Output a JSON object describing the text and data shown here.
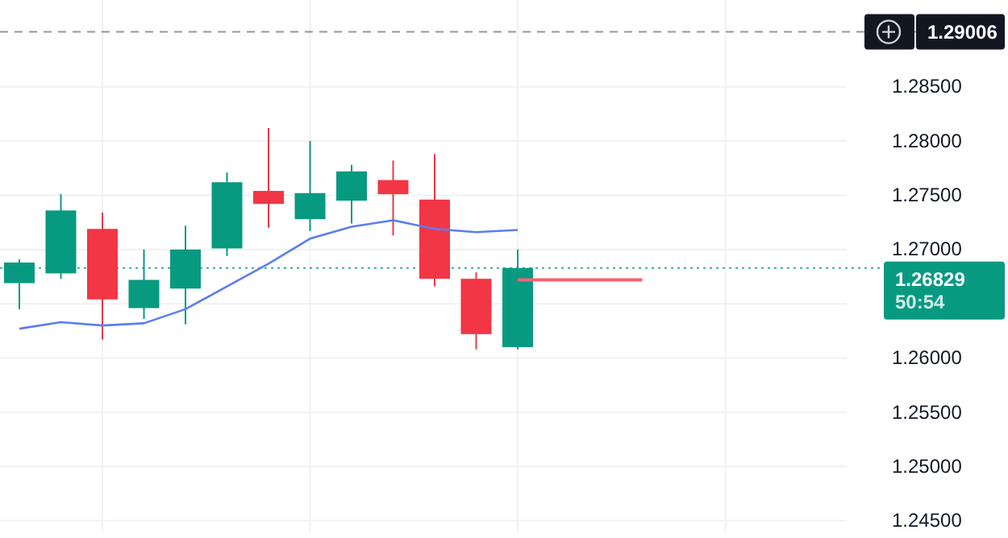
{
  "chart_data": {
    "type": "candlestick",
    "categories": [
      null,
      null,
      null,
      null,
      null,
      null,
      null,
      null,
      null,
      null,
      null,
      null,
      null,
      null,
      null,
      null,
      null,
      null,
      null,
      null
    ],
    "ohlc": [
      [
        1.2669,
        1.2691,
        1.2645,
        1.2688
      ],
      [
        1.2678,
        1.2751,
        1.2673,
        1.2736
      ],
      [
        1.2719,
        1.2734,
        1.2617,
        1.2654
      ],
      [
        1.2646,
        1.27,
        1.2636,
        1.2672
      ],
      [
        1.2664,
        1.2722,
        1.2631,
        1.27
      ],
      [
        1.2701,
        1.2771,
        1.2694,
        1.2762
      ],
      [
        1.2754,
        1.2812,
        1.272,
        1.2742
      ],
      [
        1.2728,
        1.28,
        1.2717,
        1.2752
      ],
      [
        1.2745,
        1.2778,
        1.2724,
        1.2772
      ],
      [
        1.2764,
        1.2782,
        1.2713,
        1.2751
      ],
      [
        1.2746,
        1.2788,
        1.2666,
        1.2673
      ],
      [
        1.2673,
        1.2679,
        1.2608,
        1.2622
      ],
      [
        1.261,
        1.27,
        1.2608,
        1.2683
      ],
      null,
      null,
      null,
      null,
      null,
      null,
      null
    ],
    "colors": [
      "#089981",
      "#089981",
      "#f23645",
      "#089981",
      "#089981",
      "#089981",
      "#f23645",
      "#089981",
      "#089981",
      "#f23645",
      "#f23645",
      "#f23645",
      "#089981",
      null,
      null,
      null,
      null,
      null,
      null,
      null
    ],
    "series": [
      {
        "type": "line",
        "color": "#5b7cf5",
        "values": [
          1.2627,
          1.2633,
          1.263,
          1.2632,
          1.2645,
          1.2666,
          1.2687,
          1.271,
          1.2721,
          1.2727,
          1.2719,
          1.2716,
          1.2718,
          null,
          null,
          null,
          null,
          null,
          null,
          null
        ]
      },
      {
        "type": "line",
        "color": "#f7636f",
        "values": [
          null,
          null,
          null,
          null,
          null,
          null,
          null,
          null,
          null,
          null,
          null,
          null,
          1.2672,
          1.2672,
          1.2672,
          1.2672,
          null,
          null,
          null,
          null
        ]
      }
    ],
    "ylim": [
      1.244,
      1.293
    ],
    "yticks": [
      {
        "value": 1.245,
        "label": "1.24500"
      },
      {
        "value": 1.25,
        "label": "1.25000"
      },
      {
        "value": 1.255,
        "label": "1.25500"
      },
      {
        "value": 1.26,
        "label": "1.26000"
      },
      {
        "value": 1.265,
        "label": null
      },
      {
        "value": 1.27,
        "label": "1.27000"
      },
      {
        "value": 1.275,
        "label": "1.27500"
      },
      {
        "value": 1.28,
        "label": "1.28000"
      },
      {
        "value": 1.285,
        "label": "1.28500"
      }
    ],
    "ref_lines": [
      {
        "axis": "y",
        "value": 1.29006,
        "label": "1.29006",
        "color": "#131722",
        "line_style": "dashed"
      },
      {
        "axis": "y",
        "value": 1.26829,
        "label": "1.26829\n50:54",
        "color": "#089981",
        "line_style": "dotted"
      }
    ],
    "grid": true
  }
}
